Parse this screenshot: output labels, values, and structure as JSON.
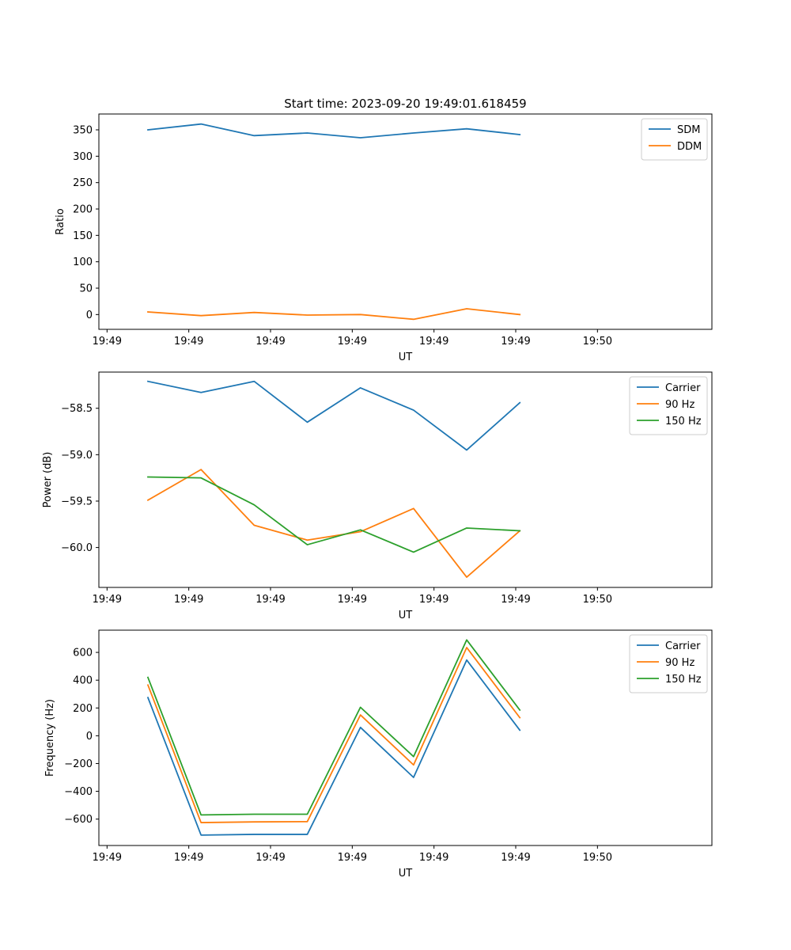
{
  "figure_title": "Start time: 2023-09-20 19:49:01.618459",
  "colors": {
    "blue": "#1f77b4",
    "orange": "#ff7f0e",
    "green": "#2ca02c"
  },
  "chart_data": [
    {
      "type": "line",
      "title": "Start time: 2023-09-20 19:49:01.618459",
      "xlabel": "UT",
      "ylabel": "Ratio",
      "xlim": [
        -0.1,
        7.4
      ],
      "ylim": [
        -28,
        380
      ],
      "x": [
        0.5,
        1.15,
        1.8,
        2.45,
        3.1,
        3.75,
        4.4,
        5.05
      ],
      "xticks": [
        0,
        1,
        2,
        3,
        4,
        5,
        6
      ],
      "xticklabels": [
        "19:49",
        "19:49",
        "19:49",
        "19:49",
        "19:49",
        "19:49",
        "19:50"
      ],
      "yticks": [
        0,
        50,
        100,
        150,
        200,
        250,
        300,
        350
      ],
      "yticklabels": [
        "0",
        "50",
        "100",
        "150",
        "200",
        "250",
        "300",
        "350"
      ],
      "legend_position": "upper-right",
      "series": [
        {
          "name": "SDM",
          "color": "#1f77b4",
          "values": [
            350,
            361,
            339,
            344,
            335,
            344,
            352,
            341
          ]
        },
        {
          "name": "DDM",
          "color": "#ff7f0e",
          "values": [
            5,
            -2,
            4,
            -1,
            0,
            -9,
            11,
            0
          ]
        }
      ]
    },
    {
      "type": "line",
      "title": "",
      "xlabel": "UT",
      "ylabel": "Power (dB)",
      "xlim": [
        -0.1,
        7.4
      ],
      "ylim": [
        -60.43,
        -58.11
      ],
      "x": [
        0.5,
        1.15,
        1.8,
        2.45,
        3.1,
        3.75,
        4.4,
        5.05
      ],
      "xticks": [
        0,
        1,
        2,
        3,
        4,
        5,
        6
      ],
      "xticklabels": [
        "19:49",
        "19:49",
        "19:49",
        "19:49",
        "19:49",
        "19:49",
        "19:50"
      ],
      "yticks": [
        -60.0,
        -59.5,
        -59.0,
        -58.5
      ],
      "yticklabels": [
        "−60.0",
        "−59.5",
        "−59.0",
        "−58.5"
      ],
      "legend_position": "upper-right",
      "series": [
        {
          "name": "Carrier",
          "color": "#1f77b4",
          "values": [
            -58.21,
            -58.33,
            -58.21,
            -58.65,
            -58.28,
            -58.52,
            -58.95,
            -58.44
          ]
        },
        {
          "name": "90 Hz",
          "color": "#ff7f0e",
          "values": [
            -59.49,
            -59.16,
            -59.76,
            -59.92,
            -59.83,
            -59.58,
            -60.32,
            -59.82
          ]
        },
        {
          "name": "150 Hz",
          "color": "#2ca02c",
          "values": [
            -59.24,
            -59.25,
            -59.54,
            -59.97,
            -59.81,
            -60.05,
            -59.79,
            -59.82
          ]
        }
      ]
    },
    {
      "type": "line",
      "title": "",
      "xlabel": "UT",
      "ylabel": "Frequency (Hz)",
      "xlim": [
        -0.1,
        7.4
      ],
      "ylim": [
        -790,
        760
      ],
      "x": [
        0.5,
        1.15,
        1.8,
        2.45,
        3.1,
        3.75,
        4.4,
        5.05
      ],
      "xticks": [
        0,
        1,
        2,
        3,
        4,
        5,
        6
      ],
      "xticklabels": [
        "19:49",
        "19:49",
        "19:49",
        "19:49",
        "19:49",
        "19:49",
        "19:50"
      ],
      "yticks": [
        -600,
        -400,
        -200,
        0,
        200,
        400,
        600
      ],
      "yticklabels": [
        "−600",
        "−400",
        "−200",
        "0",
        "200",
        "400",
        "600"
      ],
      "legend_position": "upper-right",
      "series": [
        {
          "name": "Carrier",
          "color": "#1f77b4",
          "values": [
            275,
            -715,
            -710,
            -710,
            60,
            -300,
            545,
            40
          ]
        },
        {
          "name": "90 Hz",
          "color": "#ff7f0e",
          "values": [
            365,
            -625,
            -620,
            -618,
            150,
            -210,
            635,
            130
          ]
        },
        {
          "name": "150 Hz",
          "color": "#2ca02c",
          "values": [
            420,
            -570,
            -565,
            -565,
            205,
            -150,
            690,
            185
          ]
        }
      ]
    }
  ]
}
